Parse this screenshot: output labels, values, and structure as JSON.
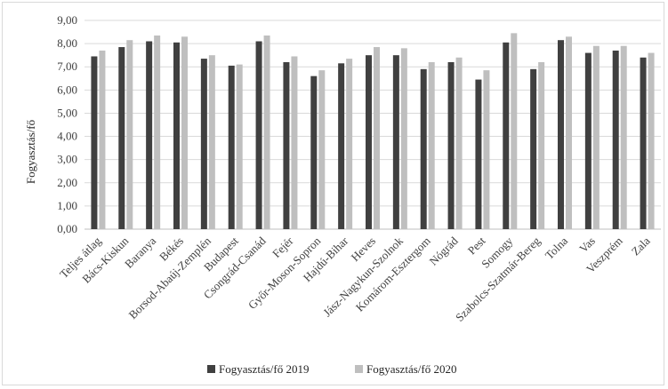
{
  "chart_data": {
    "type": "bar",
    "title": "",
    "xlabel": "",
    "ylabel": "Fogyasztás/fő",
    "ylim": [
      0,
      9
    ],
    "yticks": [
      "0,00",
      "1,00",
      "2,00",
      "3,00",
      "4,00",
      "5,00",
      "6,00",
      "7,00",
      "8,00",
      "9,00"
    ],
    "grid": true,
    "legend_position": "bottom",
    "categories": [
      "Teljes átlag",
      "Bács-Kiskun",
      "Baranya",
      "Békés",
      "Borsod-Abaúj-Zemplén",
      "Budapest",
      "Csongrád-Csanád",
      "Fejér",
      "Győr-Moson-Sopron",
      "Hajdú-Bihar",
      "Heves",
      "Jász-Nagykun-Szolnok",
      "Komárom-Esztergom",
      "Nógrád",
      "Pest",
      "Somogy",
      "Szabolcs-Szatmár-Bereg",
      "Tolna",
      "Vas",
      "Veszprém",
      "Zala"
    ],
    "series": [
      {
        "name": "Fogyasztás/fő 2019",
        "color": "#404040",
        "values": [
          7.45,
          7.85,
          8.1,
          8.05,
          7.35,
          7.05,
          8.1,
          7.2,
          6.6,
          7.15,
          7.5,
          7.5,
          6.9,
          7.2,
          6.45,
          8.05,
          6.9,
          8.15,
          7.6,
          7.7,
          7.4
        ]
      },
      {
        "name": "Fogyasztás/fő 2020",
        "color": "#bfbfbf",
        "values": [
          7.7,
          8.15,
          8.35,
          8.3,
          7.5,
          7.1,
          8.35,
          7.45,
          6.85,
          7.35,
          7.85,
          7.8,
          7.2,
          7.4,
          6.85,
          8.45,
          7.2,
          8.3,
          7.9,
          7.9,
          7.6
        ]
      }
    ]
  }
}
